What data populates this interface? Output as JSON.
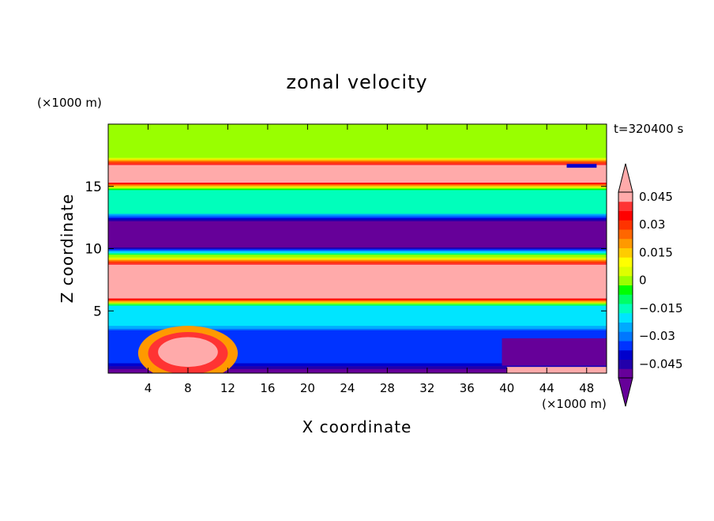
{
  "chart_data": {
    "type": "contour",
    "title": "zonal velocity",
    "xlabel": "X coordinate",
    "ylabel": "Z coordinate",
    "x_unit": "(×1000 m)",
    "y_unit": "(×1000 m)",
    "time_label": "t=320400 s",
    "xlim": [
      0,
      50
    ],
    "ylim": [
      0,
      20
    ],
    "x_ticks": [
      4,
      8,
      12,
      16,
      20,
      24,
      28,
      32,
      36,
      40,
      44,
      48
    ],
    "y_ticks": [
      5,
      10,
      15
    ],
    "colorbar": {
      "levels": [
        -0.05,
        -0.045,
        -0.04,
        -0.035,
        -0.03,
        -0.025,
        -0.02,
        -0.015,
        -0.01,
        -0.005,
        0,
        0.005,
        0.01,
        0.015,
        0.02,
        0.025,
        0.03,
        0.035,
        0.04,
        0.045,
        0.05
      ],
      "tick_values": [
        0.045,
        0.03,
        0.015,
        0,
        -0.015,
        -0.03,
        -0.045
      ],
      "tick_labels": [
        "0.045",
        "0.03",
        "0.015",
        "0",
        "−0.015",
        "−0.03",
        "−0.045"
      ],
      "colors_low_to_high": [
        "#660099",
        "#2200aa",
        "#0000cc",
        "#0033ff",
        "#0077ff",
        "#00aaff",
        "#00e5ff",
        "#00ffbb",
        "#00ff66",
        "#00ff00",
        "#99ff00",
        "#ddff00",
        "#ffff00",
        "#ffcc00",
        "#ff9900",
        "#ff6600",
        "#ff3300",
        "#ff0000",
        "#ff3333",
        "#ffaaaa"
      ],
      "extend": "both"
    },
    "layers": [
      {
        "z": [
          17.0,
          19.6
        ],
        "value": 0.0,
        "note": "green"
      },
      {
        "z": [
          15.0,
          17.0
        ],
        "value": 0.05
      },
      {
        "z": [
          12.5,
          15.0
        ],
        "value": -0.015
      },
      {
        "z": [
          9.8,
          12.5
        ],
        "value": -0.05
      },
      {
        "z": [
          9.0,
          9.8
        ],
        "value": 0.0
      },
      {
        "z": [
          5.7,
          9.0
        ],
        "value": 0.05
      },
      {
        "z": [
          3.5,
          5.7
        ],
        "value": -0.02
      },
      {
        "z": [
          0.5,
          3.5
        ],
        "value": -0.035
      },
      {
        "z": [
          0.0,
          0.5
        ],
        "value": -0.05
      }
    ]
  }
}
